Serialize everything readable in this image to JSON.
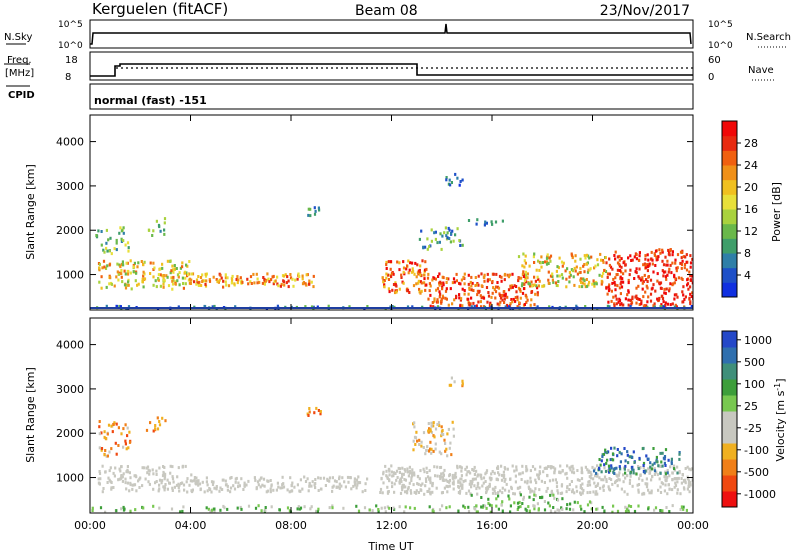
{
  "header": {
    "station": "Kerguelen (fitACF)",
    "beam": "Beam 08",
    "date": "23/Nov/2017"
  },
  "strip_panels": {
    "nsky": {
      "left_label": "N.Sky",
      "right_label": "N.Search",
      "yticks": [
        "10^5",
        "10^0"
      ],
      "right_ticks": [
        "10^5",
        "10^0"
      ]
    },
    "freq": {
      "left_label_1": "Freq.",
      "left_label_2": "[MHz]",
      "yticks": [
        "18",
        "8"
      ],
      "right_label": "Nave",
      "right_ticks": [
        "60",
        "0"
      ]
    },
    "cpid": {
      "left_label": "CPID",
      "text": "normal (fast) -151"
    }
  },
  "colors": {
    "power_scale": [
      "#1030e0",
      "#1e50c8",
      "#2f7fa8",
      "#3f9e6a",
      "#69b84a",
      "#a9d23e",
      "#e8e03a",
      "#f0c020",
      "#f09018",
      "#f06010",
      "#e82a10",
      "#f00808"
    ],
    "velocity_scale": [
      "#ee1010",
      "#f04810",
      "#f07f18",
      "#f0b020",
      "#c8c8c0",
      "#c8c8c0",
      "#78c850",
      "#3d9e3a",
      "#3f8f7a",
      "#2f6fae",
      "#2448c8"
    ]
  },
  "chart_data": [
    {
      "type": "heatmap",
      "name": "power",
      "ylabel": "Slant Range [km]",
      "yticks": [
        "4000",
        "3000",
        "2000",
        "1000"
      ],
      "ylim": [
        200,
        4600
      ],
      "xlim": [
        "00:00",
        "24:00"
      ],
      "colorbar_label": "Power [dB]",
      "colorbar_ticks": [
        "28",
        "24",
        "20",
        "16",
        "12",
        "8",
        "4"
      ],
      "colorbar_range": [
        0,
        32
      ]
    },
    {
      "type": "heatmap",
      "name": "velocity",
      "ylabel": "Slant Range [km]",
      "yticks": [
        "4000",
        "3000",
        "2000",
        "1000"
      ],
      "ylim": [
        200,
        4600
      ],
      "xlim": [
        "00:00",
        "24:00"
      ],
      "xticks": [
        "00:00",
        "04:00",
        "08:00",
        "12:00",
        "16:00",
        "20:00",
        "00:00"
      ],
      "xlabel": "Time UT",
      "colorbar_label": "Velocity [m s^-1]",
      "colorbar_ticks": [
        "1000",
        "500",
        "100",
        "25",
        "-25",
        "-100",
        "-500",
        "-1000"
      ]
    }
  ]
}
